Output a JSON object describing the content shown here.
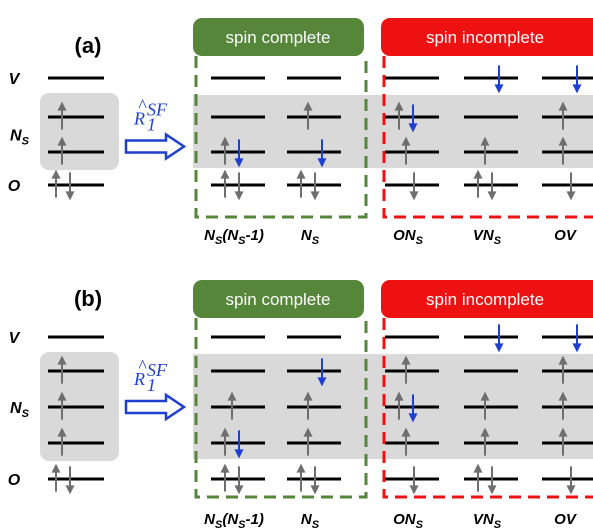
{
  "colors": {
    "complete": "#55863a",
    "incomplete": "#ee1111",
    "shade": "#d9d9d9",
    "level": "#000000",
    "spin_gray": "#6e6e6e",
    "spin_blue": "#1f3fd0",
    "operator": "#1f3fd0"
  },
  "level_names": {
    "V": "V",
    "N": "N",
    "N_sub": "S",
    "O": "O"
  },
  "headers": {
    "complete": "spin complete",
    "incomplete": "spin incomplete"
  },
  "operator": {
    "base": "R",
    "sub": "1",
    "sup": "SF"
  },
  "panels": [
    {
      "label": "(a)",
      "n_singly": 2,
      "reference": {
        "V": [],
        "N": [
          [
            "up"
          ],
          [
            "up"
          ]
        ],
        "O": [
          "up",
          "down"
        ]
      },
      "columns": [
        {
          "label": "N_S(N_S-1)",
          "label_parts": [
            "N",
            "S",
            "(N",
            "S",
            "-1)"
          ],
          "group": "complete",
          "V": [],
          "N": [
            [],
            [
              [
                "up",
                "gray"
              ],
              [
                "down",
                "blue"
              ]
            ]
          ],
          "O": [
            [
              "up",
              "gray"
            ],
            [
              "down",
              "gray"
            ]
          ]
        },
        {
          "label": "N_S",
          "label_parts": [
            "N",
            "S"
          ],
          "group": "complete",
          "V": [],
          "N": [
            [
              [
                "up",
                "gray"
              ]
            ],
            [
              [
                "down",
                "blue"
              ]
            ]
          ],
          "O": [
            [
              "up",
              "gray"
            ],
            [
              "down",
              "gray"
            ]
          ]
        },
        {
          "label": "ON_S",
          "label_parts": [
            "ON",
            "S"
          ],
          "group": "incomplete",
          "V": [],
          "N": [
            [
              [
                "up",
                "gray"
              ],
              [
                "down",
                "blue"
              ]
            ],
            [
              [
                "up",
                "gray"
              ]
            ]
          ],
          "O": [
            [
              "down",
              "gray"
            ]
          ]
        },
        {
          "label": "VN_S",
          "label_parts": [
            "VN",
            "S"
          ],
          "group": "incomplete",
          "V": [
            [
              "down",
              "blue"
            ]
          ],
          "N": [
            [],
            [
              [
                "up",
                "gray"
              ]
            ]
          ],
          "O": [
            [
              "up",
              "gray"
            ],
            [
              "down",
              "gray"
            ]
          ]
        },
        {
          "label": "OV",
          "label_parts": [
            "OV"
          ],
          "group": "incomplete",
          "V": [
            [
              "down",
              "blue"
            ]
          ],
          "N": [
            [
              [
                "up",
                "gray"
              ]
            ],
            [
              [
                "up",
                "gray"
              ]
            ]
          ],
          "O": [
            [
              "down",
              "gray"
            ]
          ]
        }
      ]
    },
    {
      "label": "(b)",
      "n_singly": 3,
      "reference": {
        "V": [],
        "N": [
          [
            "up"
          ],
          [
            "up"
          ],
          [
            "up"
          ]
        ],
        "O": [
          "up",
          "down"
        ]
      },
      "columns": [
        {
          "label": "N_S(N_S-1)",
          "label_parts": [
            "N",
            "S",
            "(N",
            "S",
            "-1)"
          ],
          "group": "complete",
          "V": [],
          "N": [
            [],
            [
              [
                "up",
                "gray"
              ]
            ],
            [
              [
                "up",
                "gray"
              ],
              [
                "down",
                "blue"
              ]
            ]
          ],
          "O": [
            [
              "up",
              "gray"
            ],
            [
              "down",
              "gray"
            ]
          ]
        },
        {
          "label": "N_S",
          "label_parts": [
            "N",
            "S"
          ],
          "group": "complete",
          "V": [],
          "N": [
            [
              [
                "down",
                "blue"
              ]
            ],
            [
              [
                "up",
                "gray"
              ]
            ],
            [
              [
                "up",
                "gray"
              ]
            ]
          ],
          "O": [
            [
              "up",
              "gray"
            ],
            [
              "down",
              "gray"
            ]
          ]
        },
        {
          "label": "ON_S",
          "label_parts": [
            "ON",
            "S"
          ],
          "group": "incomplete",
          "V": [],
          "N": [
            [
              [
                "up",
                "gray"
              ]
            ],
            [
              [
                "up",
                "gray"
              ],
              [
                "down",
                "blue"
              ]
            ],
            [
              [
                "up",
                "gray"
              ]
            ]
          ],
          "O": [
            [
              "down",
              "gray"
            ]
          ]
        },
        {
          "label": "VN_S",
          "label_parts": [
            "VN",
            "S"
          ],
          "group": "incomplete",
          "V": [
            [
              "down",
              "blue"
            ]
          ],
          "N": [
            [],
            [
              [
                "up",
                "gray"
              ]
            ],
            [
              [
                "up",
                "gray"
              ]
            ]
          ],
          "O": [
            [
              "up",
              "gray"
            ],
            [
              "down",
              "gray"
            ]
          ]
        },
        {
          "label": "OV",
          "label_parts": [
            "OV"
          ],
          "group": "incomplete",
          "V": [
            [
              "down",
              "blue"
            ]
          ],
          "N": [
            [
              [
                "up",
                "gray"
              ]
            ],
            [
              [
                "up",
                "gray"
              ]
            ],
            [
              [
                "up",
                "gray"
              ]
            ]
          ],
          "O": [
            [
              "down",
              "gray"
            ]
          ]
        }
      ]
    }
  ]
}
